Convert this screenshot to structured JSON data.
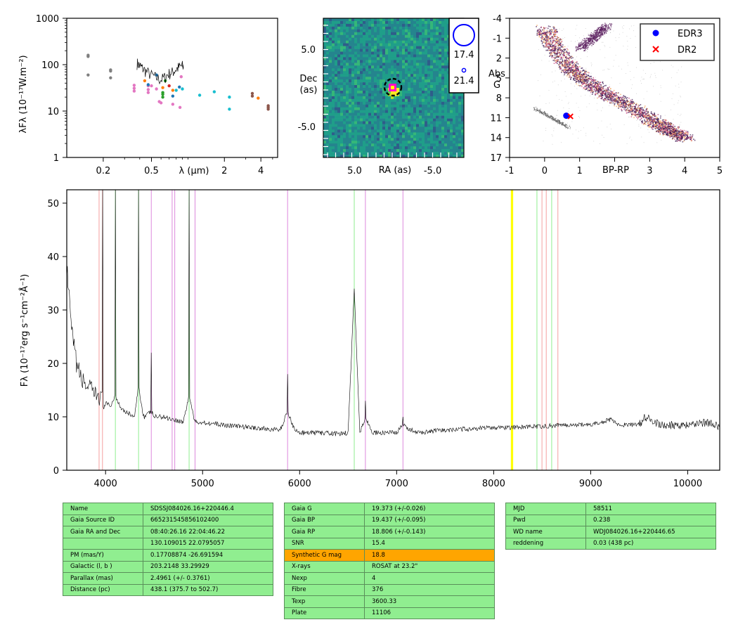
{
  "sed": {
    "ylabel": "λFλ (10⁻¹⁷W.m⁻²)",
    "xlabel": "λ (μm)",
    "ytick_labels": [
      "1",
      "10",
      "100",
      "1000"
    ],
    "xtick_labels": [
      "0.2",
      "0.5",
      "2",
      "4"
    ]
  },
  "image": {
    "xlabel": "RA (as)",
    "ylabel": [
      "Dec",
      "(as)"
    ],
    "xtick_labels": [
      "5.0",
      "-5.0"
    ],
    "ytick_labels": [
      "5.0",
      "-5.0"
    ],
    "legend": [
      "17.4",
      "21.4"
    ]
  },
  "hr": {
    "xlabel": "BP-RP",
    "ylabel": [
      "Abs",
      "G"
    ],
    "xtick_labels": [
      "-1",
      "0",
      "1",
      "3",
      "4",
      "5"
    ],
    "ytick_labels": [
      "-4",
      "-1",
      "2",
      "5",
      "8",
      "11",
      "14",
      "17"
    ],
    "legend": [
      "EDR3",
      "DR2"
    ],
    "colors": {
      "edr3": "#0000ff",
      "dr2": "#ff0000"
    }
  },
  "spectrum": {
    "ylabel": "Fλ (10⁻¹⁷erg s⁻¹cm⁻²Å⁻¹)",
    "xtick_labels": [
      "4000",
      "5000",
      "6000",
      "7000",
      "8000",
      "9000",
      "10000"
    ],
    "ytick_labels": [
      "0",
      "10",
      "20",
      "30",
      "40",
      "50"
    ]
  },
  "chart_data": [
    {
      "type": "scatter",
      "name": "SED",
      "xscale": "log",
      "yscale": "log",
      "xlim": [
        0.1,
        5.5
      ],
      "ylim": [
        1,
        1000
      ],
      "points": [
        {
          "x": 0.15,
          "y": 160,
          "color": "#7f7f7f"
        },
        {
          "x": 0.15,
          "y": 150,
          "color": "#7f7f7f"
        },
        {
          "x": 0.15,
          "y": 60,
          "color": "#7f7f7f"
        },
        {
          "x": 0.23,
          "y": 77,
          "color": "#7f7f7f"
        },
        {
          "x": 0.23,
          "y": 73,
          "color": "#7f7f7f"
        },
        {
          "x": 0.23,
          "y": 52,
          "color": "#7f7f7f"
        },
        {
          "x": 0.36,
          "y": 36,
          "color": "#e377c2"
        },
        {
          "x": 0.36,
          "y": 31,
          "color": "#e377c2"
        },
        {
          "x": 0.36,
          "y": 27,
          "color": "#e377c2"
        },
        {
          "x": 0.47,
          "y": 35,
          "color": "#e377c2"
        },
        {
          "x": 0.47,
          "y": 29,
          "color": "#e377c2"
        },
        {
          "x": 0.47,
          "y": 25,
          "color": "#e377c2"
        },
        {
          "x": 0.44,
          "y": 45,
          "color": "#ff7f0e"
        },
        {
          "x": 0.62,
          "y": 32,
          "color": "#ff7f0e"
        },
        {
          "x": 0.75,
          "y": 28,
          "color": "#ff7f0e"
        },
        {
          "x": 0.62,
          "y": 25,
          "color": "#2ca02c"
        },
        {
          "x": 0.62,
          "y": 23,
          "color": "#2ca02c"
        },
        {
          "x": 0.62,
          "y": 20,
          "color": "#2ca02c"
        },
        {
          "x": 0.5,
          "y": 35,
          "color": "#e377c2"
        },
        {
          "x": 0.55,
          "y": 30,
          "color": "#e377c2"
        },
        {
          "x": 0.58,
          "y": 16,
          "color": "#e377c2"
        },
        {
          "x": 0.6,
          "y": 15,
          "color": "#e377c2"
        },
        {
          "x": 0.75,
          "y": 14,
          "color": "#e377c2"
        },
        {
          "x": 0.86,
          "y": 12,
          "color": "#e377c2"
        },
        {
          "x": 0.8,
          "y": 28,
          "color": "#17becf"
        },
        {
          "x": 0.9,
          "y": 30,
          "color": "#17becf"
        },
        {
          "x": 0.88,
          "y": 55,
          "color": "#e377c2"
        },
        {
          "x": 0.7,
          "y": 35,
          "color": "#d62728"
        },
        {
          "x": 0.65,
          "y": 45,
          "color": "#2ca02c"
        },
        {
          "x": 1.25,
          "y": 22,
          "color": "#17becf"
        },
        {
          "x": 1.65,
          "y": 26,
          "color": "#17becf"
        },
        {
          "x": 2.2,
          "y": 20,
          "color": "#17becf"
        },
        {
          "x": 2.2,
          "y": 11,
          "color": "#17becf"
        },
        {
          "x": 3.4,
          "y": 24,
          "color": "#8c564b"
        },
        {
          "x": 3.4,
          "y": 21,
          "color": "#8c564b"
        },
        {
          "x": 4.6,
          "y": 13,
          "color": "#8c564b"
        },
        {
          "x": 4.6,
          "y": 12,
          "color": "#8c564b"
        },
        {
          "x": 4.6,
          "y": 11,
          "color": "#8c564b"
        },
        {
          "x": 3.8,
          "y": 19,
          "color": "#ff7f0e"
        },
        {
          "x": 0.55,
          "y": 60,
          "color": "#1f77b4"
        },
        {
          "x": 0.47,
          "y": 37,
          "color": "#1f77b4"
        },
        {
          "x": 0.75,
          "y": 21,
          "color": "#1f77b4"
        },
        {
          "x": 0.85,
          "y": 33,
          "color": "#1f77b4"
        }
      ],
      "line_x": [
        0.38,
        0.4,
        0.42,
        0.45,
        0.5,
        0.55,
        0.6,
        0.65,
        0.7,
        0.75,
        0.8,
        0.85,
        0.9,
        0.92
      ],
      "line_y": [
        110,
        95,
        85,
        72,
        60,
        52,
        48,
        55,
        65,
        70,
        80,
        90,
        95,
        90
      ]
    },
    {
      "type": "heatmap",
      "name": "image",
      "xlim": [
        9,
        -9
      ],
      "ylim": [
        -9,
        9
      ],
      "source_x": 0,
      "source_y": -0.5,
      "legend_mags": [
        17.4,
        21.4
      ]
    },
    {
      "type": "scatter",
      "name": "HR",
      "xlim": [
        -1,
        5
      ],
      "ylim": [
        17,
        -4
      ],
      "series": [
        {
          "name": "EDR3",
          "x": [
            0.62
          ],
          "y": [
            10.7
          ]
        },
        {
          "name": "DR2",
          "x": [
            0.74
          ],
          "y": [
            10.8
          ]
        }
      ],
      "legend_loc": "upper right"
    },
    {
      "type": "line",
      "name": "spectrum",
      "xlim": [
        3600,
        10330
      ],
      "ylim": [
        0,
        52.5
      ],
      "x": [
        3600,
        3650,
        3700,
        3750,
        3800,
        3850,
        3900,
        3930,
        3970,
        4000,
        4050,
        4101,
        4150,
        4200,
        4250,
        4300,
        4340,
        4380,
        4400,
        4471,
        4500,
        4600,
        4700,
        4800,
        4861,
        4920,
        5000,
        5200,
        5500,
        5800,
        5876,
        5950,
        6000,
        6200,
        6400,
        6500,
        6563,
        6620,
        6678,
        6750,
        7000,
        7065,
        7200,
        7500,
        8000,
        8200,
        8500,
        8700,
        9000,
        9200,
        9300,
        9500,
        9560,
        9700,
        10000,
        10200,
        10330
      ],
      "y": [
        38,
        26,
        20,
        17,
        16,
        15,
        14,
        14,
        13,
        12.5,
        12,
        14,
        12,
        11,
        10.5,
        10,
        16,
        11,
        10,
        11,
        10,
        10,
        9.5,
        9,
        14,
        9,
        9,
        8.5,
        8,
        7.5,
        11,
        7.5,
        7,
        7,
        6.8,
        7,
        34,
        7,
        10,
        7,
        7,
        8.5,
        7,
        7.5,
        8,
        8,
        8.2,
        8.5,
        8.5,
        9.5,
        8.5,
        8.5,
        10,
        8.5,
        8.5,
        9,
        8
      ],
      "line_colors": [
        {
          "x": 3933,
          "color": "#f4a0a0"
        },
        {
          "x": 3968,
          "color": "#f4a0a0"
        },
        {
          "x": 4101,
          "color": "#90ee90"
        },
        {
          "x": 4340,
          "color": "#90ee90"
        },
        {
          "x": 4471,
          "color": "#dd88dd"
        },
        {
          "x": 4686,
          "color": "#dd88dd"
        },
        {
          "x": 4713,
          "color": "#dd88dd"
        },
        {
          "x": 4861,
          "color": "#90ee90"
        },
        {
          "x": 4922,
          "color": "#dd88dd"
        },
        {
          "x": 5876,
          "color": "#dd88dd"
        },
        {
          "x": 6563,
          "color": "#90ee90"
        },
        {
          "x": 6678,
          "color": "#dd88dd"
        },
        {
          "x": 7065,
          "color": "#dd88dd"
        },
        {
          "x": 8183,
          "color": "#ffff00"
        },
        {
          "x": 8195,
          "color": "#ffff00"
        },
        {
          "x": 8498,
          "color": "#f4a0a0"
        },
        {
          "x": 8542,
          "color": "#f4a0a0"
        },
        {
          "x": 8662,
          "color": "#f4a0a0"
        },
        {
          "x": 8446,
          "color": "#90ee90"
        },
        {
          "x": 8598,
          "color": "#90ee90"
        }
      ]
    },
    {
      "type": "table",
      "tables": [
        [
          [
            "Name",
            "SDSSJ084026.16+220446.4"
          ],
          [
            "Gaia Source ID",
            "665231545856102400"
          ],
          [
            "Gaia RA and Dec",
            "08:40:26.16    22:04:46.22"
          ],
          [
            "",
            "130.109015    22.0795057"
          ],
          [
            "PM (mas/Y)",
            "0.17708874    -26.691594"
          ],
          [
            "Galactic (l, b )",
            "203.2148    33.29929"
          ],
          [
            "Parallax (mas)",
            "2.4961 (+/- 0.3761)"
          ],
          [
            "Distance (pc)",
            "438.1 (375.7 to 502.7)"
          ]
        ],
        [
          [
            "Gaia G",
            "19.373 (+/-0.026)"
          ],
          [
            "Gaia BP",
            "19.437 (+/-0.095)"
          ],
          [
            "Gaia RP",
            "18.806 (+/-0.143)"
          ],
          [
            "SNR",
            "15.4"
          ],
          [
            "Synthetic G mag",
            "18.8"
          ],
          [
            "X-rays",
            "ROSAT at 23.2\""
          ],
          [
            "Nexp",
            "4"
          ],
          [
            "Fibre",
            "376"
          ],
          [
            "Texp",
            "3600.33"
          ],
          [
            "Plate",
            "11106"
          ]
        ],
        [
          [
            "MJD",
            "58511"
          ],
          [
            "Pwd",
            "0.238"
          ],
          [
            "WD name",
            "WDJ084026.16+220446.65"
          ],
          [
            "reddening",
            "0.03 (438 pc)"
          ]
        ]
      ]
    }
  ]
}
